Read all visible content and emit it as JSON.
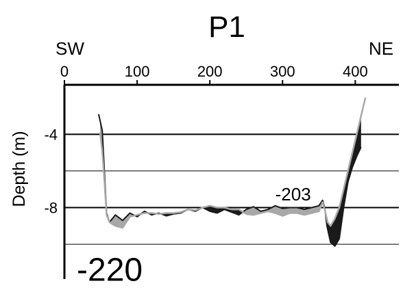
{
  "chart_data": {
    "type": "area",
    "title": "P1",
    "ylabel": "Depth (m)",
    "xlabel": "",
    "x_axis_position": "top",
    "direction_labels": {
      "left": "SW",
      "right": "NE"
    },
    "xlim": [
      0,
      460
    ],
    "ylim": [
      -11.9,
      -1.3
    ],
    "x_ticks": [
      0,
      100,
      200,
      300,
      400
    ],
    "y_ticks": [
      -4,
      -8
    ],
    "grid": true,
    "gridlines_y": [
      -4,
      -6,
      -8,
      -10
    ],
    "major_gridlines_y": [
      -4,
      -8
    ],
    "annotations": [
      {
        "text": "-203",
        "x": 290,
        "y": -7.6,
        "size": "medium"
      },
      {
        "text": "-220",
        "x": 17,
        "y": -12.0,
        "size": "large"
      }
    ],
    "colors": {
      "profile_black": "#1a1a1a",
      "profile_grey": "#a8a8a8",
      "axis": "#000000"
    },
    "series": [
      {
        "x": [
          47,
          52,
          55,
          58,
          62,
          70,
          80,
          90,
          100,
          110,
          120,
          130,
          140,
          150,
          160,
          170,
          180,
          190,
          200,
          210,
          220,
          230,
          240,
          250,
          260,
          270,
          280,
          290,
          300,
          310,
          320,
          330,
          340,
          350,
          355,
          358,
          361,
          366,
          372,
          378,
          384,
          390,
          396,
          402,
          408
        ],
        "y": [
          -2.9,
          -3.8,
          -6.0,
          -8.3,
          -8.8,
          -8.4,
          -8.7,
          -8.3,
          -8.5,
          -8.2,
          -8.4,
          -8.3,
          -8.45,
          -8.35,
          -8.3,
          -8.1,
          -8.2,
          -8.0,
          -8.2,
          -8.3,
          -8.1,
          -8.25,
          -8.4,
          -8.1,
          -7.95,
          -8.2,
          -8.1,
          -7.9,
          -8.05,
          -8.0,
          -8.0,
          -8.1,
          -8.0,
          -7.9,
          -7.6,
          -8.0,
          -9.0,
          -9.9,
          -10.1,
          -9.7,
          -8.0,
          -6.6,
          -5.8,
          -5.2,
          -4.7
        ]
      },
      {
        "x": [
          49,
          52,
          55,
          58,
          62,
          70,
          80,
          90,
          100,
          110,
          120,
          130,
          140,
          150,
          160,
          170,
          180,
          190,
          200,
          210,
          220,
          230,
          240,
          250,
          260,
          270,
          280,
          290,
          300,
          310,
          320,
          330,
          340,
          350,
          355,
          358,
          362,
          366,
          372,
          378,
          384,
          390,
          396,
          402,
          408,
          414
        ],
        "y": [
          -3.9,
          -4.9,
          -6.5,
          -8.4,
          -8.8,
          -9.0,
          -9.1,
          -8.5,
          -8.4,
          -8.3,
          -8.3,
          -8.35,
          -8.3,
          -8.3,
          -8.25,
          -8.1,
          -8.15,
          -8.0,
          -7.9,
          -8.0,
          -8.0,
          -8.1,
          -8.1,
          -8.35,
          -8.4,
          -8.3,
          -8.2,
          -8.3,
          -8.45,
          -8.3,
          -8.3,
          -8.4,
          -8.3,
          -8.2,
          -7.7,
          -8.1,
          -8.8,
          -9.0,
          -8.6,
          -8.0,
          -7.0,
          -6.0,
          -5.0,
          -4.0,
          -3.0,
          -2.0
        ]
      }
    ]
  }
}
